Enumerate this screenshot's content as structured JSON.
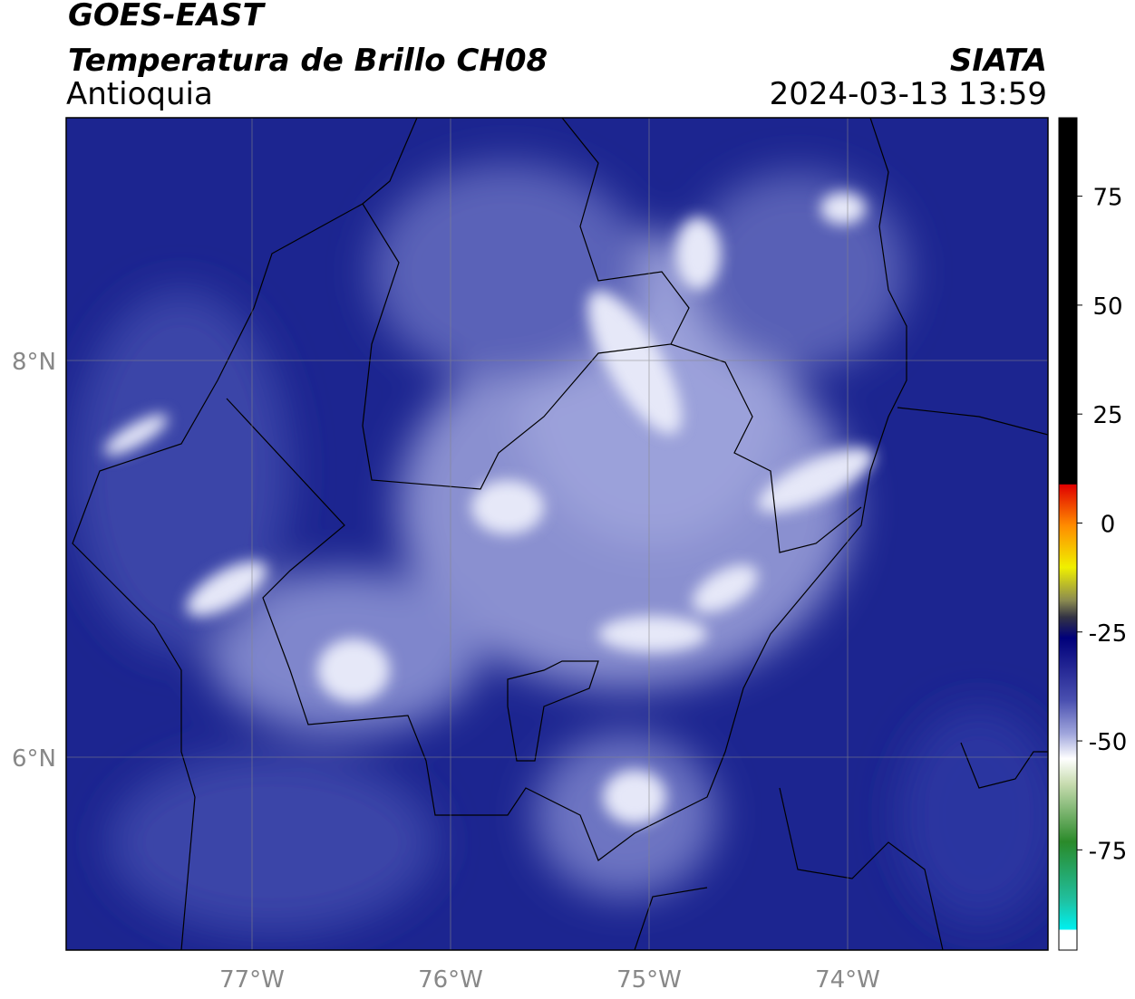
{
  "header": {
    "satellite": "GOES-EAST",
    "product": "Temperatura de Brillo CH08",
    "region": "Antioquia",
    "source": "SIATA",
    "datetime": "2024-03-13 13:59"
  },
  "map": {
    "lat_labels": [
      "8°N",
      "6°N"
    ],
    "lon_labels": [
      "77°W",
      "76°W",
      "75°W",
      "74°W"
    ]
  },
  "colorbar": {
    "range": [
      -98,
      93
    ],
    "ticks": [
      75,
      50,
      25,
      0,
      -25,
      -50,
      -75
    ]
  }
}
